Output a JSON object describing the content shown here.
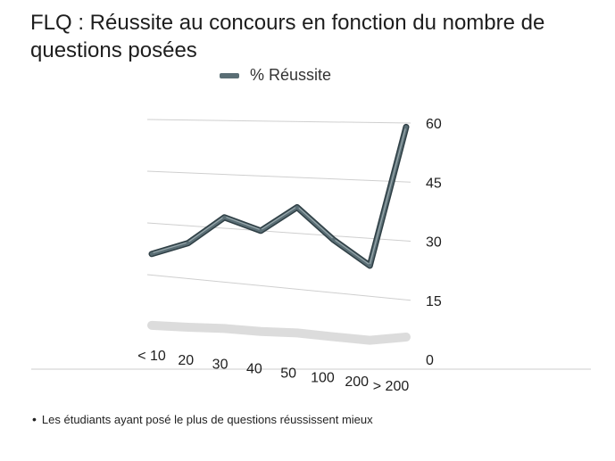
{
  "title": "FLQ : Réussite au concours en fonction du nombre de questions posées",
  "legend": {
    "label": "% Réussite"
  },
  "note": {
    "bullet": "•",
    "text": "Les étudiants ayant posé le plus de questions réussissent mieux"
  },
  "chart_data": {
    "type": "line",
    "title": "FLQ : Réussite au concours en fonction du nombre de questions posées",
    "categories": [
      "< 10",
      "20",
      "30",
      "40",
      "50",
      "100",
      "200",
      "> 200"
    ],
    "series": [
      {
        "name": "% Réussite",
        "values": [
          21,
          25,
          33,
          30,
          37,
          29,
          23,
          59
        ]
      }
    ],
    "yticks": [
      0,
      15,
      30,
      45,
      60
    ],
    "ylim": [
      0,
      60
    ],
    "grid": true,
    "legend_position": "top",
    "colors": {
      "series": "#5a6e75",
      "shadow": "#d8d8d8",
      "grid": "#cfcfcf"
    }
  }
}
